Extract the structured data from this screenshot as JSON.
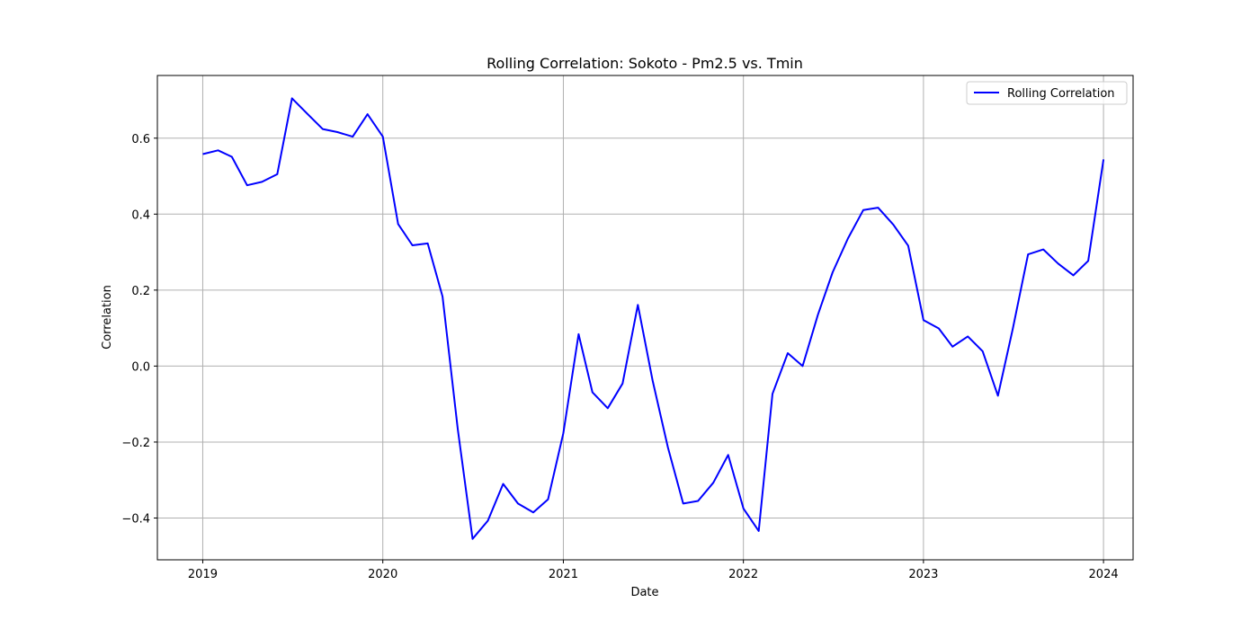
{
  "chart_data": {
    "type": "line",
    "title": "Rolling Correlation: Sokoto - Pm2.5 vs. Tmin",
    "xlabel": "Date",
    "ylabel": "Correlation",
    "grid": true,
    "legend_position": "top-right",
    "x_ticks": [
      "2019",
      "2020",
      "2021",
      "2022",
      "2023",
      "2024"
    ],
    "y_ticks": [
      "−0.4",
      "−0.2",
      "0.0",
      "0.2",
      "0.4",
      "0.6"
    ],
    "xlim": [
      "2018-10-01",
      "2024-03-01"
    ],
    "ylim": [
      -0.51,
      0.765
    ],
    "series": [
      {
        "name": "Rolling Correlation",
        "color": "#0000ff",
        "x": [
          "2019-01-01",
          "2019-02-01",
          "2019-03-01",
          "2019-04-01",
          "2019-05-01",
          "2019-06-01",
          "2019-07-01",
          "2019-08-01",
          "2019-09-01",
          "2019-10-01",
          "2019-11-01",
          "2019-12-01",
          "2020-01-01",
          "2020-02-01",
          "2020-03-01",
          "2020-04-01",
          "2020-05-01",
          "2020-06-01",
          "2020-07-01",
          "2020-08-01",
          "2020-09-01",
          "2020-10-01",
          "2020-11-01",
          "2020-12-01",
          "2021-01-01",
          "2021-02-01",
          "2021-03-01",
          "2021-04-01",
          "2021-05-01",
          "2021-06-01",
          "2021-07-01",
          "2021-08-01",
          "2021-09-01",
          "2021-10-01",
          "2021-11-01",
          "2021-12-01",
          "2022-01-01",
          "2022-02-01",
          "2022-03-01",
          "2022-04-01",
          "2022-05-01",
          "2022-06-01",
          "2022-07-01",
          "2022-08-01",
          "2022-09-01",
          "2022-10-01",
          "2022-11-01",
          "2022-12-01",
          "2023-01-01",
          "2023-02-01",
          "2023-03-01",
          "2023-04-01",
          "2023-05-01",
          "2023-06-01",
          "2023-07-01",
          "2023-08-01",
          "2023-09-01",
          "2023-10-01",
          "2023-11-01",
          "2023-12-01",
          "2024-01-01"
        ],
        "y": [
          0.558,
          0.568,
          0.551,
          0.476,
          0.485,
          0.505,
          0.705,
          0.664,
          0.624,
          0.616,
          0.604,
          0.663,
          0.604,
          0.374,
          0.318,
          0.323,
          0.183,
          -0.167,
          -0.455,
          -0.407,
          -0.31,
          -0.362,
          -0.385,
          -0.351,
          -0.177,
          0.084,
          -0.069,
          -0.111,
          -0.046,
          0.161,
          -0.038,
          -0.214,
          -0.362,
          -0.355,
          -0.307,
          -0.234,
          -0.375,
          -0.434,
          -0.073,
          0.034,
          0.0,
          0.135,
          0.247,
          0.336,
          0.411,
          0.417,
          0.372,
          0.317,
          0.121,
          0.099,
          0.051,
          0.078,
          0.039,
          -0.078,
          0.098,
          0.294,
          0.307,
          0.27,
          0.239,
          0.277,
          0.544
        ]
      }
    ]
  }
}
